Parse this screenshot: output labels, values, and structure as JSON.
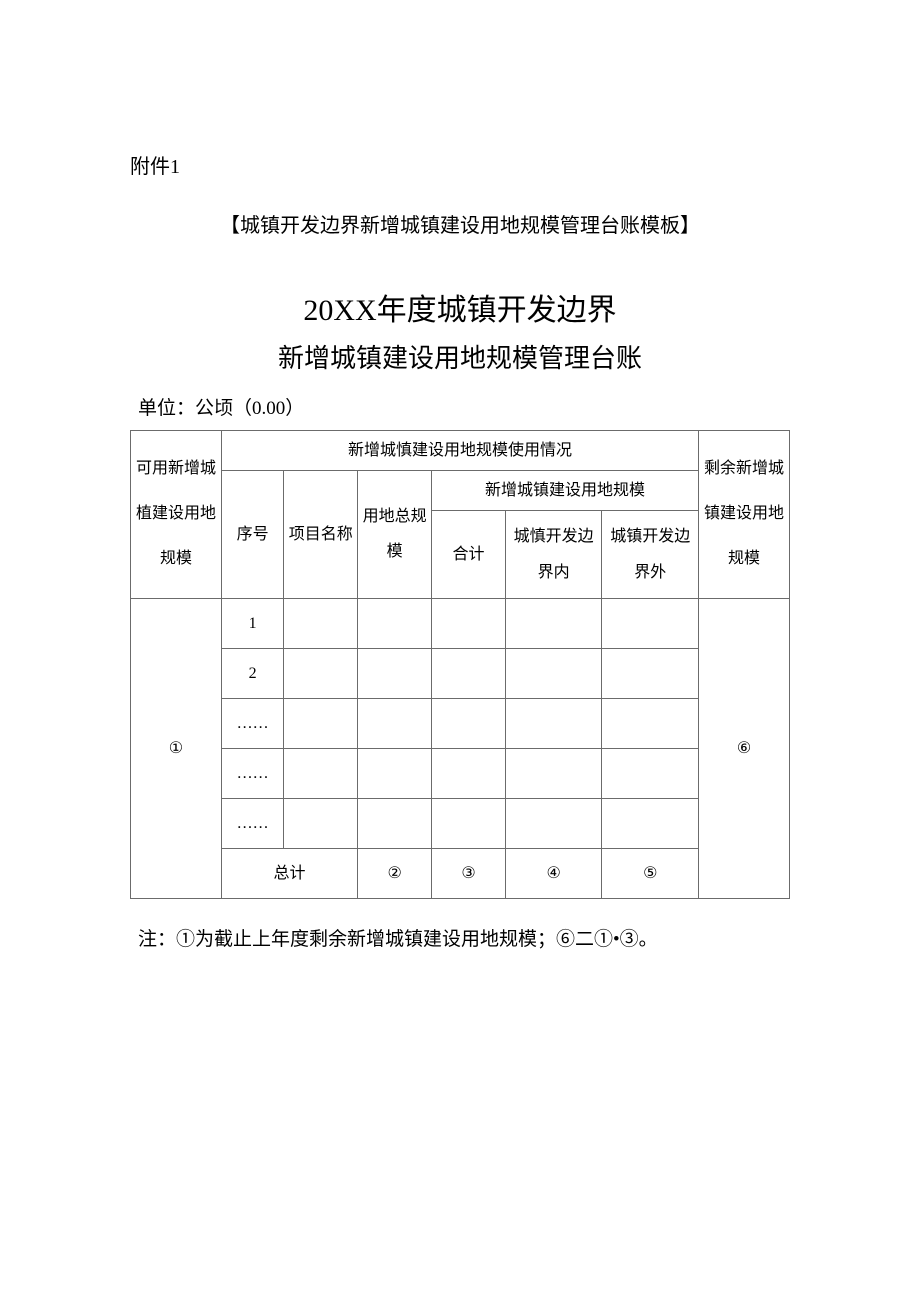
{
  "attachment_label": "附件1",
  "template_title": "【城镇开发边界新增城镇建设用地规模管理台账模板】",
  "main_title": "20XX年度城镇开发边界",
  "sub_title": "新增城镇建设用地规模管理台账",
  "unit_label": "单位：公顷（0.00）",
  "table": {
    "header": {
      "col1": "可用新增城植建设用地规模",
      "col_group": "新增城慎建设用地规模使用情况",
      "col_last": "剩余新增城镇建设用地规模",
      "seq": "序号",
      "proj_name": "项目名称",
      "land_total": "用地总规模",
      "sub_group": "新增城镇建设用地规模",
      "sub_total": "合计",
      "sub_in": "城慎开发边界内",
      "sub_out": "城镇开发边界外"
    },
    "rows": [
      {
        "seq": "1",
        "name": "",
        "total": "",
        "subtotal": "",
        "in": "",
        "out": ""
      },
      {
        "seq": "2",
        "name": "",
        "total": "",
        "subtotal": "",
        "in": "",
        "out": ""
      },
      {
        "seq": "……",
        "name": "",
        "total": "",
        "subtotal": "",
        "in": "",
        "out": ""
      },
      {
        "seq": "……",
        "name": "",
        "total": "",
        "subtotal": "",
        "in": "",
        "out": ""
      },
      {
        "seq": "……",
        "name": "",
        "total": "",
        "subtotal": "",
        "in": "",
        "out": ""
      }
    ],
    "footer": {
      "col1_value": "①",
      "total_label": "总计",
      "c2": "②",
      "c3": "③",
      "c4": "④",
      "c5": "⑤",
      "col_last_value": "⑥"
    }
  },
  "footnote": "注：①为截止上年度剩余新增城镇建设用地规模；⑥二①•③。",
  "colors": {
    "text": "#000000",
    "border": "#6b6b6b",
    "background": "#ffffff"
  }
}
